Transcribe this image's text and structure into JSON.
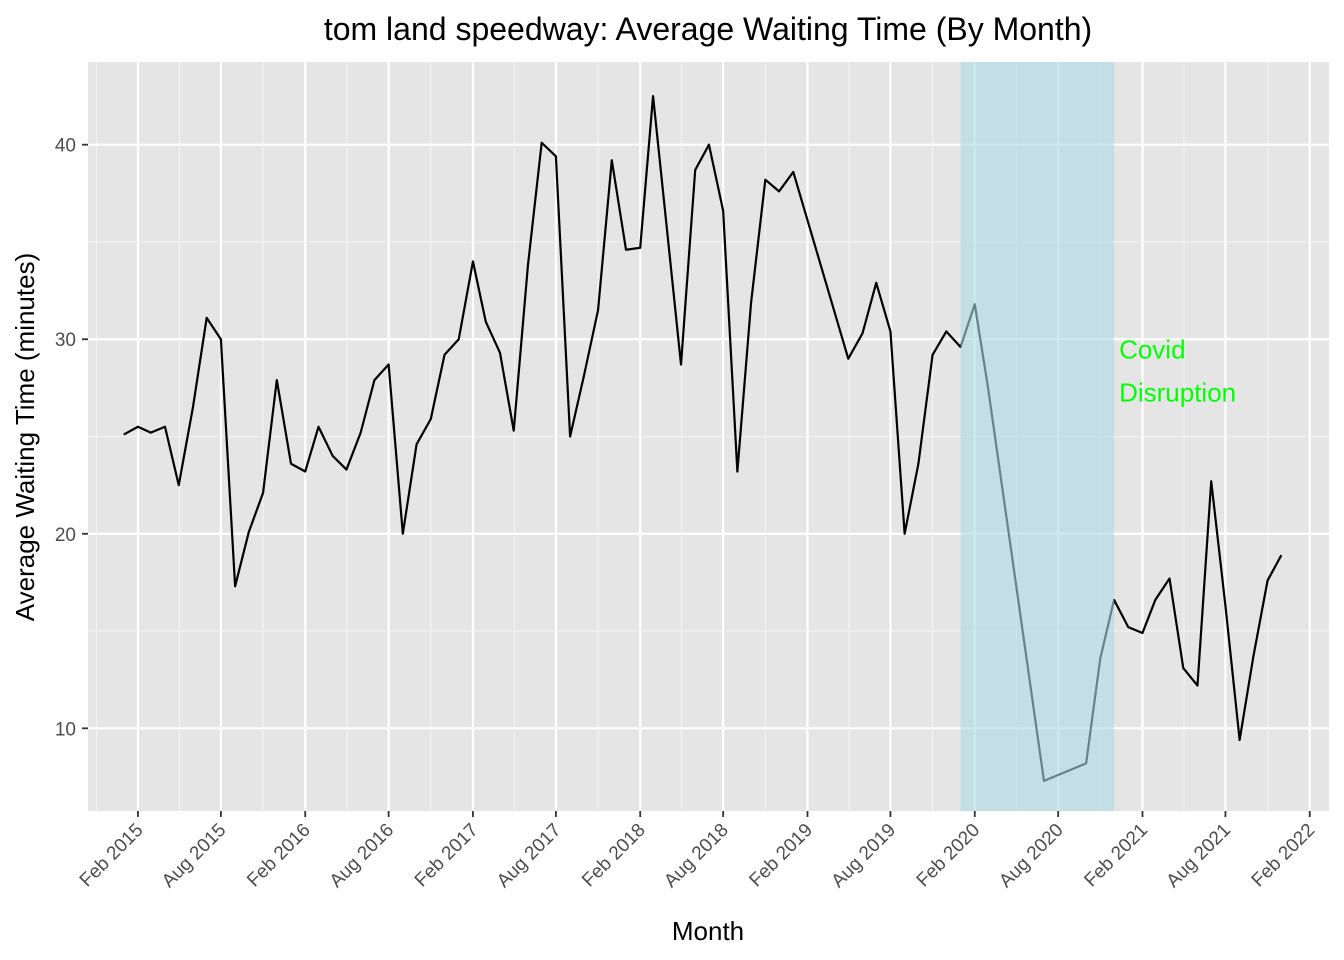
{
  "chart_data": {
    "type": "line",
    "title": "tom land speedway: Average Waiting Time (By Month)",
    "xlabel": "Month",
    "ylabel": "Average Waiting Time (minutes)",
    "x_axis": {
      "type": "date",
      "range": [
        "2014-10-15",
        "2022-03-15"
      ]
    },
    "y_axis": {
      "range": [
        5.75,
        44.25
      ],
      "ticks": [
        10,
        20,
        30,
        40
      ]
    },
    "x_ticks": [
      {
        "date": "2015-02-01",
        "label": "Feb 2015"
      },
      {
        "date": "2015-08-01",
        "label": "Aug 2015"
      },
      {
        "date": "2016-02-01",
        "label": "Feb 2016"
      },
      {
        "date": "2016-08-01",
        "label": "Aug 2016"
      },
      {
        "date": "2017-02-01",
        "label": "Feb 2017"
      },
      {
        "date": "2017-08-01",
        "label": "Aug 2017"
      },
      {
        "date": "2018-02-01",
        "label": "Feb 2018"
      },
      {
        "date": "2018-08-01",
        "label": "Aug 2018"
      },
      {
        "date": "2019-02-01",
        "label": "Feb 2019"
      },
      {
        "date": "2019-08-01",
        "label": "Aug 2019"
      },
      {
        "date": "2020-02-01",
        "label": "Feb 2020"
      },
      {
        "date": "2020-08-01",
        "label": "Aug 2020"
      },
      {
        "date": "2021-02-01",
        "label": "Feb 2021"
      },
      {
        "date": "2021-08-01",
        "label": "Aug 2021"
      },
      {
        "date": "2022-02-01",
        "label": "Feb 2022"
      }
    ],
    "grid": true,
    "series": [
      {
        "line_color": "#000000",
        "points": [
          [
            "2015-01-01",
            25.1
          ],
          [
            "2015-02-01",
            25.5
          ],
          [
            "2015-03-01",
            25.2
          ],
          [
            "2015-04-01",
            25.5
          ],
          [
            "2015-05-01",
            22.5
          ],
          [
            "2015-06-01",
            26.5
          ],
          [
            "2015-07-01",
            31.1
          ],
          [
            "2015-08-01",
            30.0
          ],
          [
            "2015-09-01",
            17.3
          ],
          [
            "2015-10-01",
            20.1
          ],
          [
            "2015-11-01",
            22.1
          ],
          [
            "2015-12-01",
            27.9
          ],
          [
            "2016-01-01",
            23.6
          ],
          [
            "2016-02-01",
            23.2
          ],
          [
            "2016-03-01",
            25.5
          ],
          [
            "2016-04-01",
            24.0
          ],
          [
            "2016-05-01",
            23.3
          ],
          [
            "2016-06-01",
            25.2
          ],
          [
            "2016-07-01",
            27.9
          ],
          [
            "2016-08-01",
            28.7
          ],
          [
            "2016-09-01",
            20.0
          ],
          [
            "2016-10-01",
            24.6
          ],
          [
            "2016-11-01",
            25.9
          ],
          [
            "2016-12-01",
            29.2
          ],
          [
            "2017-01-01",
            30.0
          ],
          [
            "2017-02-01",
            34.0
          ],
          [
            "2017-03-01",
            30.9
          ],
          [
            "2017-04-01",
            29.3
          ],
          [
            "2017-05-01",
            25.3
          ],
          [
            "2017-06-01",
            33.8
          ],
          [
            "2017-07-01",
            40.1
          ],
          [
            "2017-08-01",
            39.4
          ],
          [
            "2017-09-01",
            25.0
          ],
          [
            "2017-10-01",
            28.1
          ],
          [
            "2017-11-01",
            31.5
          ],
          [
            "2017-12-01",
            39.2
          ],
          [
            "2018-01-01",
            34.6
          ],
          [
            "2018-02-01",
            34.7
          ],
          [
            "2018-03-01",
            42.5
          ],
          [
            "2018-04-01",
            35.5
          ],
          [
            "2018-05-01",
            28.7
          ],
          [
            "2018-06-01",
            38.7
          ],
          [
            "2018-07-01",
            40.0
          ],
          [
            "2018-08-01",
            36.6
          ],
          [
            "2018-09-01",
            23.2
          ],
          [
            "2018-10-01",
            31.9
          ],
          [
            "2018-11-01",
            38.2
          ],
          [
            "2018-12-01",
            37.6
          ],
          [
            "2019-01-01",
            38.6
          ],
          [
            "2019-05-01",
            29.0
          ],
          [
            "2019-06-01",
            30.3
          ],
          [
            "2019-07-01",
            32.9
          ],
          [
            "2019-08-01",
            30.4
          ],
          [
            "2019-09-01",
            20.0
          ],
          [
            "2019-10-01",
            23.6
          ],
          [
            "2019-11-01",
            29.2
          ],
          [
            "2019-12-01",
            30.4
          ],
          [
            "2020-01-01",
            29.6
          ],
          [
            "2020-02-01",
            31.8
          ],
          [
            "2020-03-01",
            27.5
          ],
          [
            "2020-07-01",
            7.3
          ],
          [
            "2020-10-01",
            8.2
          ],
          [
            "2020-11-01",
            13.6
          ],
          [
            "2020-12-01",
            16.6
          ],
          [
            "2021-01-01",
            15.2
          ],
          [
            "2021-02-01",
            14.9
          ],
          [
            "2021-03-01",
            16.6
          ],
          [
            "2021-04-01",
            17.7
          ],
          [
            "2021-05-01",
            13.1
          ],
          [
            "2021-06-01",
            12.2
          ],
          [
            "2021-07-01",
            22.7
          ],
          [
            "2021-08-01",
            16.3
          ],
          [
            "2021-09-01",
            9.4
          ],
          [
            "2021-10-01",
            13.7
          ],
          [
            "2021-11-01",
            17.6
          ],
          [
            "2021-12-01",
            18.9
          ]
        ]
      }
    ],
    "highlight_band": {
      "from": "2020-01-01",
      "to": "2020-12-01",
      "color": "#add8e6",
      "opacity": 0.6,
      "annotation": {
        "lines": [
          "Covid",
          "Disruption"
        ],
        "color": "#00ff00"
      }
    }
  }
}
